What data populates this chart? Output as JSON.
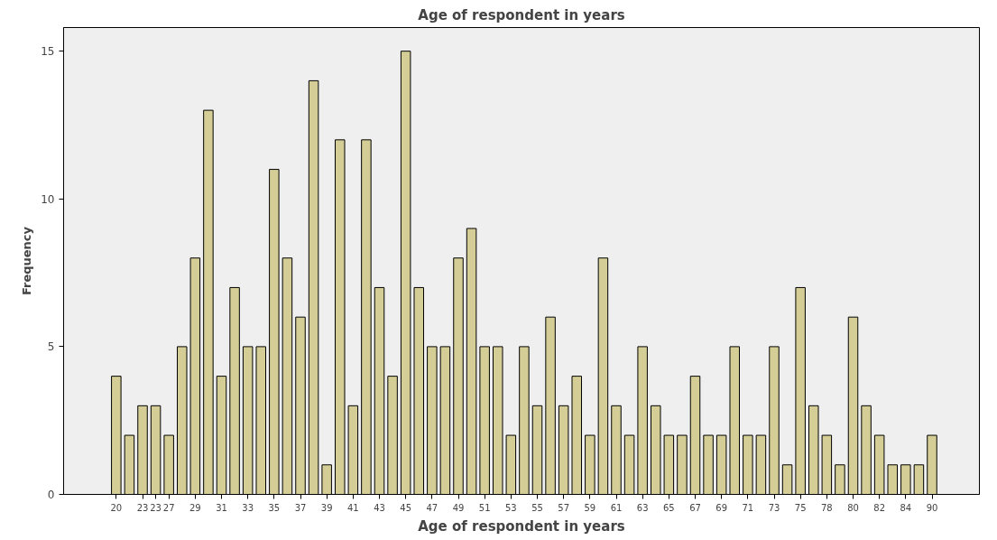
{
  "chart_data": {
    "type": "bar",
    "title": "Age of respondent in years",
    "xlabel": "Age of respondent in years",
    "ylabel": "Frequency",
    "categories": [
      "20",
      null,
      "23",
      "23",
      "27",
      null,
      "29",
      null,
      "31",
      null,
      "33",
      null,
      "35",
      null,
      "37",
      null,
      "39",
      null,
      "41",
      null,
      "43",
      null,
      "45",
      null,
      "47",
      null,
      "49",
      null,
      "51",
      null,
      "53",
      null,
      "55",
      null,
      "57",
      null,
      "59",
      null,
      "61",
      null,
      "63",
      null,
      "65",
      null,
      "67",
      null,
      "69",
      null,
      "71",
      null,
      "73",
      null,
      "75",
      null,
      "78",
      null,
      "80",
      null,
      "82",
      null,
      "84",
      null,
      "90"
    ],
    "values": [
      4,
      2,
      3,
      3,
      2,
      5,
      8,
      13,
      4,
      7,
      5,
      5,
      11,
      8,
      6,
      14,
      1,
      12,
      3,
      12,
      7,
      4,
      15,
      7,
      5,
      5,
      8,
      9,
      5,
      5,
      2,
      5,
      3,
      6,
      3,
      4,
      2,
      8,
      3,
      2,
      5,
      3,
      2,
      2,
      4,
      2,
      2,
      5,
      2,
      2,
      5,
      1,
      7,
      3,
      2,
      1,
      6,
      3,
      2,
      1,
      1,
      1,
      2
    ],
    "color": "#d4ce96",
    "ylim": [
      0,
      15.8
    ],
    "yticks": [
      0,
      5,
      10,
      15
    ],
    "grid": false
  }
}
